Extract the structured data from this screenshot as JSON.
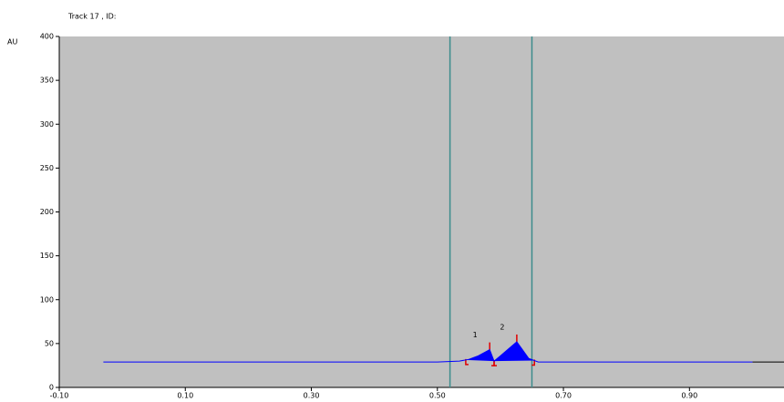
{
  "chart_data": {
    "type": "line",
    "title": "Track 17 , ID:",
    "y_label": "AU",
    "x": [
      -0.03,
      0.5,
      0.535,
      0.55,
      0.565,
      0.583,
      0.59,
      0.6,
      0.626,
      0.645,
      0.66,
      1.0
    ],
    "values": [
      29,
      29,
      30,
      32,
      36,
      43,
      30,
      36,
      52,
      33,
      29,
      29
    ],
    "color": "#0000ff",
    "xlim": [
      -0.1,
      1.05
    ],
    "xticks": [
      {
        "value": -0.1,
        "label": "-0.10"
      },
      {
        "value": 0.1,
        "label": "0.10"
      },
      {
        "value": 0.3,
        "label": "0.30"
      },
      {
        "value": 0.5,
        "label": "0.50"
      },
      {
        "value": 0.7,
        "label": "0.70"
      },
      {
        "value": 0.9,
        "label": "0.90"
      }
    ],
    "ylim": [
      0,
      400
    ],
    "yticks": [
      0,
      50,
      100,
      150,
      200,
      250,
      300,
      350,
      400
    ],
    "markers": [
      0.52,
      0.65
    ],
    "peaks": [
      {
        "label": "1",
        "start": 0.545,
        "max": 0.583,
        "end": 0.59
      },
      {
        "label": "2",
        "start": 0.59,
        "max": 0.626,
        "end": 0.654
      }
    ]
  }
}
